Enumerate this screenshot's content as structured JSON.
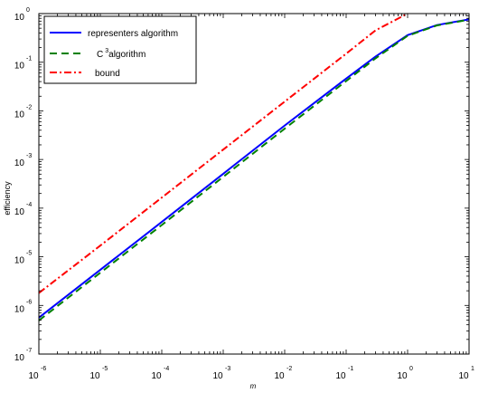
{
  "chart_data": {
    "type": "line",
    "xlabel": "m",
    "ylabel": "efficiency",
    "xscale": "log",
    "yscale": "log",
    "xlim": [
      1e-06,
      10
    ],
    "ylim": [
      1e-07,
      1
    ],
    "grid": false,
    "legend_position": "top-left",
    "x_ticks": [
      {
        "base": "10",
        "exp": "-6",
        "value": 1e-06
      },
      {
        "base": "10",
        "exp": "-5",
        "value": 1e-05
      },
      {
        "base": "10",
        "exp": "-4",
        "value": 0.0001
      },
      {
        "base": "10",
        "exp": "-3",
        "value": 0.001
      },
      {
        "base": "10",
        "exp": "-2",
        "value": 0.01
      },
      {
        "base": "10",
        "exp": "-1",
        "value": 0.1
      },
      {
        "base": "10",
        "exp": "0",
        "value": 1
      },
      {
        "base": "10",
        "exp": "1",
        "value": 10
      }
    ],
    "y_ticks": [
      {
        "base": "10",
        "exp": "0",
        "value": 1
      },
      {
        "base": "10",
        "exp": "-1",
        "value": 0.1
      },
      {
        "base": "10",
        "exp": "-2",
        "value": 0.01
      },
      {
        "base": "10",
        "exp": "-3",
        "value": 0.001
      },
      {
        "base": "10",
        "exp": "-4",
        "value": 0.0001
      },
      {
        "base": "10",
        "exp": "-5",
        "value": 1e-05
      },
      {
        "base": "10",
        "exp": "-6",
        "value": 1e-06
      },
      {
        "base": "10",
        "exp": "-7",
        "value": 1e-07
      }
    ],
    "series": [
      {
        "name": "representers algorithm",
        "color": "#0000ff",
        "dash": "solid",
        "x": [
          1e-06,
          1e-05,
          0.0001,
          0.001,
          0.01,
          0.1,
          0.3,
          1,
          3,
          10
        ],
        "y": [
          5.6e-07,
          5.4e-06,
          5.2e-05,
          0.00051,
          0.005,
          0.046,
          0.13,
          0.36,
          0.58,
          0.76
        ]
      },
      {
        "name": "C",
        "name_sup": "3",
        "name_rest": "algorithm",
        "color": "#008000",
        "dash": "dashed",
        "x": [
          1e-06,
          1e-05,
          0.0001,
          0.001,
          0.01,
          0.1,
          0.3,
          1,
          3,
          10
        ],
        "y": [
          4.9e-07,
          4.7e-06,
          4.5e-05,
          0.00044,
          0.0043,
          0.041,
          0.12,
          0.35,
          0.57,
          0.75
        ]
      },
      {
        "name": "bound",
        "color": "#ff0000",
        "dash": "dashdot",
        "x": [
          1e-06,
          1e-05,
          0.0001,
          0.001,
          0.01,
          0.1,
          0.3,
          1
        ],
        "y": [
          1.8e-06,
          1.7e-05,
          0.000165,
          0.0016,
          0.0155,
          0.15,
          0.45,
          1.0
        ]
      }
    ]
  }
}
